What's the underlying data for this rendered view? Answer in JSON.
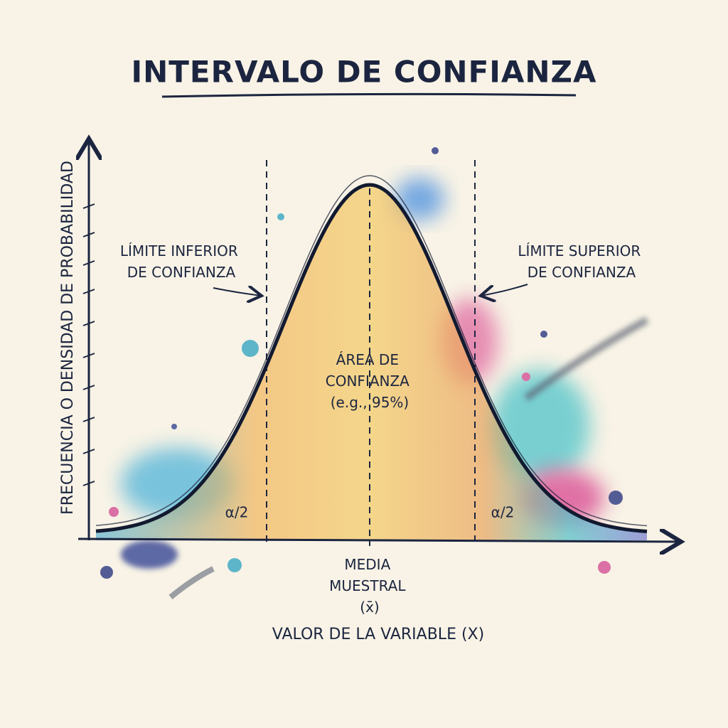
{
  "title": "INTERVALO DE CONFIANZA",
  "y_axis_label": "FRECUENCIA O DENSIDAD DE PROBABILIDAD",
  "x_axis_label": "VALOR DE LA VARIABLE (X)",
  "annotations": {
    "lower_limit": [
      "LÍMITE INFERIOR",
      "DE CONFIANZA"
    ],
    "upper_limit": [
      "LÍMITE SUPERIOR",
      "DE CONFIANZA"
    ],
    "confidence_area": [
      "ÁREA DE",
      "CONFIANZA",
      "(e.g., 95%)"
    ],
    "alpha_left": "α/2",
    "alpha_right": "α/2",
    "mean": [
      "MEDIA",
      "MUESTRAL",
      "(x̄)"
    ]
  }
}
